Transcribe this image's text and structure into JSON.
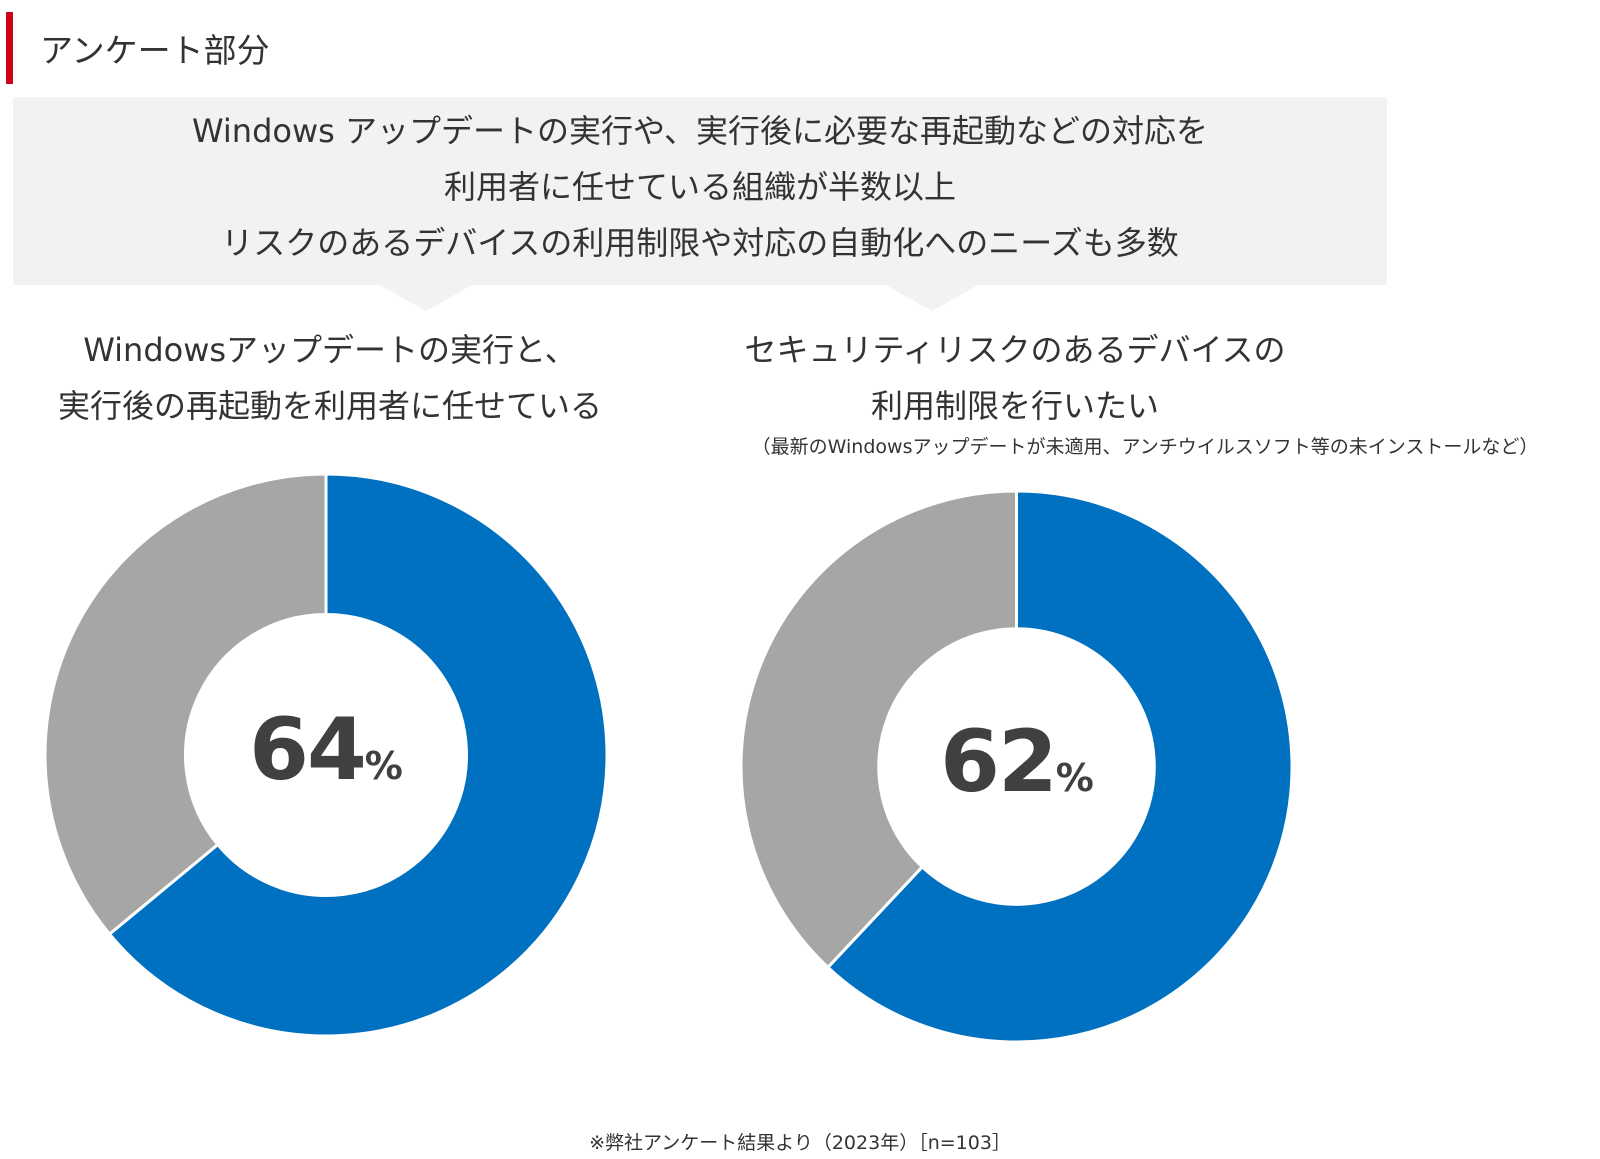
{
  "section_title": "アンケート部分",
  "summary": {
    "lines": [
      "Windows アップデートの実行や、実行後に必要な再起動などの対応を",
      "利用者に任せている組織が半数以上",
      "リスクのあるデバイスの利用制限や対応の自動化へのニーズも多数"
    ],
    "background": "#f2f2f2"
  },
  "chart_data": [
    {
      "type": "pie",
      "title_lines": [
        "Windowsアップデートの実行と、",
        "実行後の再起動を利用者に任せている"
      ],
      "subtitle": "",
      "values": [
        64,
        36
      ],
      "colors": [
        "#0070c0",
        "#a6a6a6"
      ],
      "center_value": "64",
      "center_unit": "%"
    },
    {
      "type": "pie",
      "title_lines": [
        "セキュリティリスクのあるデバイスの",
        "利用制限を行いたい"
      ],
      "subtitle": "（最新のWindowsアップデートが未適用、アンチウイルスソフト等の未インストールなど）",
      "values": [
        62,
        38
      ],
      "colors": [
        "#0070c0",
        "#a6a6a6"
      ],
      "center_value": "62",
      "center_unit": "%"
    }
  ],
  "footnote": "※弊社アンケート結果より（2023年）［n=103］",
  "accent_color": "#d0021b"
}
